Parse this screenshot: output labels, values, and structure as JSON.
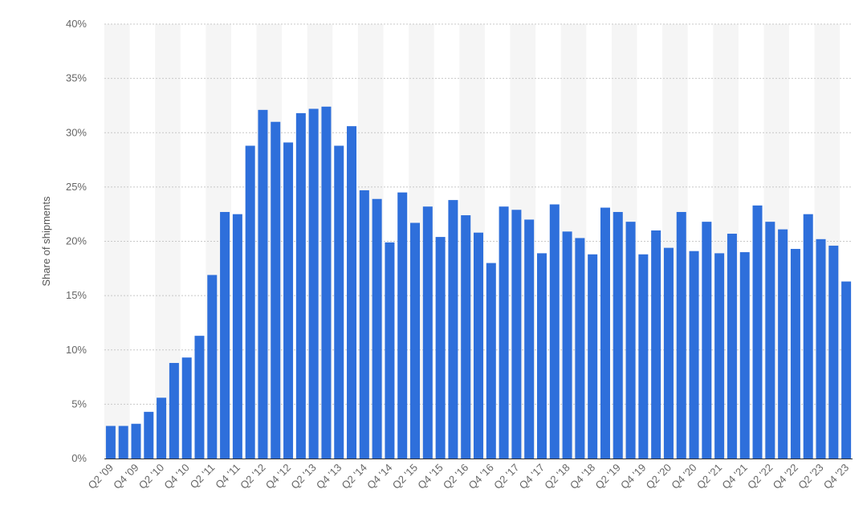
{
  "chart_data": {
    "type": "bar",
    "ylabel": "Share of shipments",
    "ylim": [
      0,
      40
    ],
    "yticks": [
      "0%",
      "5%",
      "10%",
      "15%",
      "20%",
      "25%",
      "30%",
      "35%",
      "40%"
    ],
    "grid": true,
    "bar_color": "#2e6fdb",
    "categories": [
      "Q2 '09",
      "Q3 '09",
      "Q4 '09",
      "Q1 '10",
      "Q2 '10",
      "Q3 '10",
      "Q4 '10",
      "Q1 '11",
      "Q2 '11",
      "Q3 '11",
      "Q4 '11",
      "Q1 '12",
      "Q2 '12",
      "Q3 '12",
      "Q4 '12",
      "Q1 '13",
      "Q2 '13",
      "Q3 '13",
      "Q4 '13",
      "Q1 '14",
      "Q2 '14",
      "Q3 '14",
      "Q4 '14",
      "Q1 '15",
      "Q2 '15",
      "Q3 '15",
      "Q4 '15",
      "Q1 '16",
      "Q2 '16",
      "Q3 '16",
      "Q4 '16",
      "Q1 '17",
      "Q2 '17",
      "Q3 '17",
      "Q4 '17",
      "Q1 '18",
      "Q2 '18",
      "Q3 '18",
      "Q4 '18",
      "Q1 '19",
      "Q2 '19",
      "Q3 '19",
      "Q4 '19",
      "Q1 '20",
      "Q2 '20",
      "Q3 '20",
      "Q4 '20",
      "Q1 '21",
      "Q2 '21",
      "Q3 '21",
      "Q4 '21",
      "Q1 '22",
      "Q2 '22",
      "Q3 '22",
      "Q4 '22",
      "Q1 '23",
      "Q2 '23",
      "Q3 '23",
      "Q4 '23"
    ],
    "values": [
      3.0,
      3.0,
      3.2,
      4.3,
      5.6,
      8.8,
      9.3,
      11.3,
      16.9,
      22.7,
      22.5,
      28.8,
      32.1,
      31.0,
      29.1,
      31.8,
      32.2,
      32.4,
      28.8,
      30.6,
      24.7,
      23.9,
      19.9,
      24.5,
      21.7,
      23.2,
      20.4,
      23.8,
      22.4,
      20.8,
      18.0,
      23.2,
      22.9,
      22.0,
      18.9,
      23.4,
      20.9,
      20.3,
      18.8,
      23.1,
      22.7,
      21.8,
      18.8,
      21.0,
      19.4,
      22.7,
      19.1,
      21.8,
      18.9,
      20.7,
      19.0,
      23.3,
      21.8,
      21.1,
      19.3,
      22.5,
      20.2,
      19.6,
      16.3
    ]
  }
}
